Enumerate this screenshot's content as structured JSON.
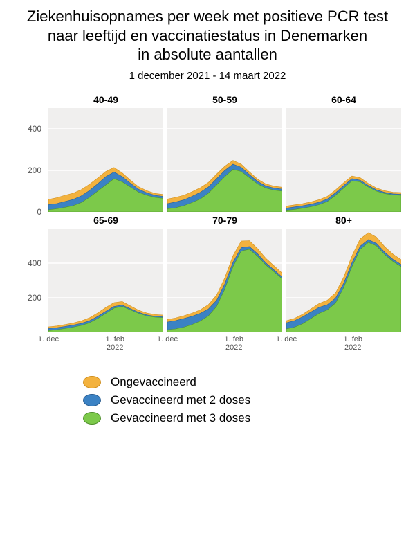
{
  "title_lines": [
    "Ziekenhuisopnames per week met positieve PCR test",
    "naar leeftijd en vaccinatiestatus in Denemarken",
    "in absolute aantallen"
  ],
  "subtitle": "1 december 2021 - 14 maart 2022",
  "title_fontsize": 22,
  "subtitle_fontsize": 15,
  "colors": {
    "unvaccinated_fill": "#f3b23e",
    "unvaccinated_stroke": "#cf8f1f",
    "dose2_fill": "#3b82c4",
    "dose2_stroke": "#2b5e91",
    "dose3_fill": "#7cc94a",
    "dose3_stroke": "#4f8f2c",
    "panel_bg": "#f0efee",
    "gridline": "#ffffff",
    "axis_text": "#555555",
    "page_bg": "#ffffff"
  },
  "chart": {
    "type": "area-small-multiples",
    "n_weeks": 15,
    "x_ticks": [
      {
        "pos": 0.0,
        "label_top": "1. dec",
        "label_bottom": ""
      },
      {
        "pos": 0.58,
        "label_top": "1. feb",
        "label_bottom": "2022"
      }
    ],
    "rows": [
      {
        "ymax": 500,
        "yticks": [
          0,
          200,
          400
        ]
      },
      {
        "ymax": 600,
        "yticks": [
          200,
          400
        ]
      }
    ],
    "panels": [
      {
        "title": "40-49",
        "row": 0,
        "dose3": [
          10,
          15,
          22,
          30,
          45,
          70,
          100,
          130,
          160,
          145,
          120,
          95,
          80,
          70,
          65
        ],
        "dose2": [
          25,
          25,
          28,
          30,
          32,
          33,
          35,
          40,
          32,
          25,
          18,
          14,
          12,
          10,
          10
        ],
        "unvacc": [
          25,
          28,
          30,
          30,
          30,
          30,
          28,
          25,
          22,
          18,
          15,
          12,
          10,
          9,
          9
        ]
      },
      {
        "title": "50-59",
        "row": 0,
        "dose3": [
          15,
          20,
          30,
          45,
          62,
          90,
          130,
          170,
          205,
          195,
          165,
          135,
          115,
          105,
          100
        ],
        "dose2": [
          25,
          28,
          28,
          30,
          32,
          30,
          30,
          30,
          25,
          20,
          15,
          12,
          10,
          10,
          10
        ],
        "unvacc": [
          22,
          22,
          22,
          22,
          22,
          22,
          22,
          20,
          18,
          15,
          13,
          11,
          10,
          9,
          9
        ]
      },
      {
        "title": "60-64",
        "row": 0,
        "dose3": [
          8,
          12,
          18,
          25,
          35,
          50,
          80,
          115,
          150,
          145,
          120,
          100,
          88,
          82,
          80
        ],
        "dose2": [
          10,
          12,
          12,
          12,
          12,
          12,
          12,
          12,
          10,
          8,
          7,
          6,
          6,
          5,
          5
        ],
        "unvacc": [
          10,
          10,
          10,
          11,
          12,
          13,
          14,
          14,
          13,
          12,
          10,
          9,
          8,
          8,
          8
        ]
      },
      {
        "title": "65-69",
        "row": 1,
        "dose3": [
          10,
          15,
          22,
          30,
          40,
          55,
          80,
          110,
          140,
          150,
          130,
          110,
          95,
          88,
          85
        ],
        "dose2": [
          12,
          12,
          12,
          12,
          12,
          12,
          12,
          12,
          10,
          8,
          7,
          6,
          6,
          5,
          5
        ],
        "unvacc": [
          10,
          10,
          11,
          12,
          14,
          17,
          20,
          22,
          22,
          20,
          16,
          12,
          11,
          10,
          10
        ]
      },
      {
        "title": "70-79",
        "row": 1,
        "dose3": [
          15,
          20,
          30,
          45,
          65,
          95,
          150,
          250,
          380,
          470,
          480,
          440,
          390,
          350,
          310
        ],
        "dose2": [
          45,
          48,
          50,
          48,
          45,
          40,
          35,
          30,
          25,
          20,
          16,
          14,
          12,
          11,
          10
        ],
        "unvacc": [
          15,
          15,
          16,
          18,
          20,
          25,
          30,
          35,
          38,
          38,
          34,
          30,
          26,
          24,
          22
        ]
      },
      {
        "title": "80+",
        "row": 1,
        "dose3": [
          20,
          30,
          50,
          80,
          110,
          130,
          170,
          260,
          380,
          480,
          520,
          500,
          450,
          410,
          380
        ],
        "dose2": [
          35,
          38,
          40,
          38,
          35,
          30,
          28,
          25,
          22,
          18,
          16,
          14,
          13,
          12,
          12
        ],
        "unvacc": [
          12,
          13,
          15,
          18,
          22,
          26,
          30,
          35,
          40,
          42,
          40,
          36,
          32,
          30,
          28
        ]
      }
    ]
  },
  "legend": [
    {
      "label": "Ongevaccineerd",
      "fill": "#f3b23e",
      "stroke": "#cf8f1f"
    },
    {
      "label": "Gevaccineerd met 2 doses",
      "fill": "#3b82c4",
      "stroke": "#2b5e91"
    },
    {
      "label": "Gevaccineerd met 3 doses",
      "fill": "#7cc94a",
      "stroke": "#4f8f2c"
    }
  ]
}
